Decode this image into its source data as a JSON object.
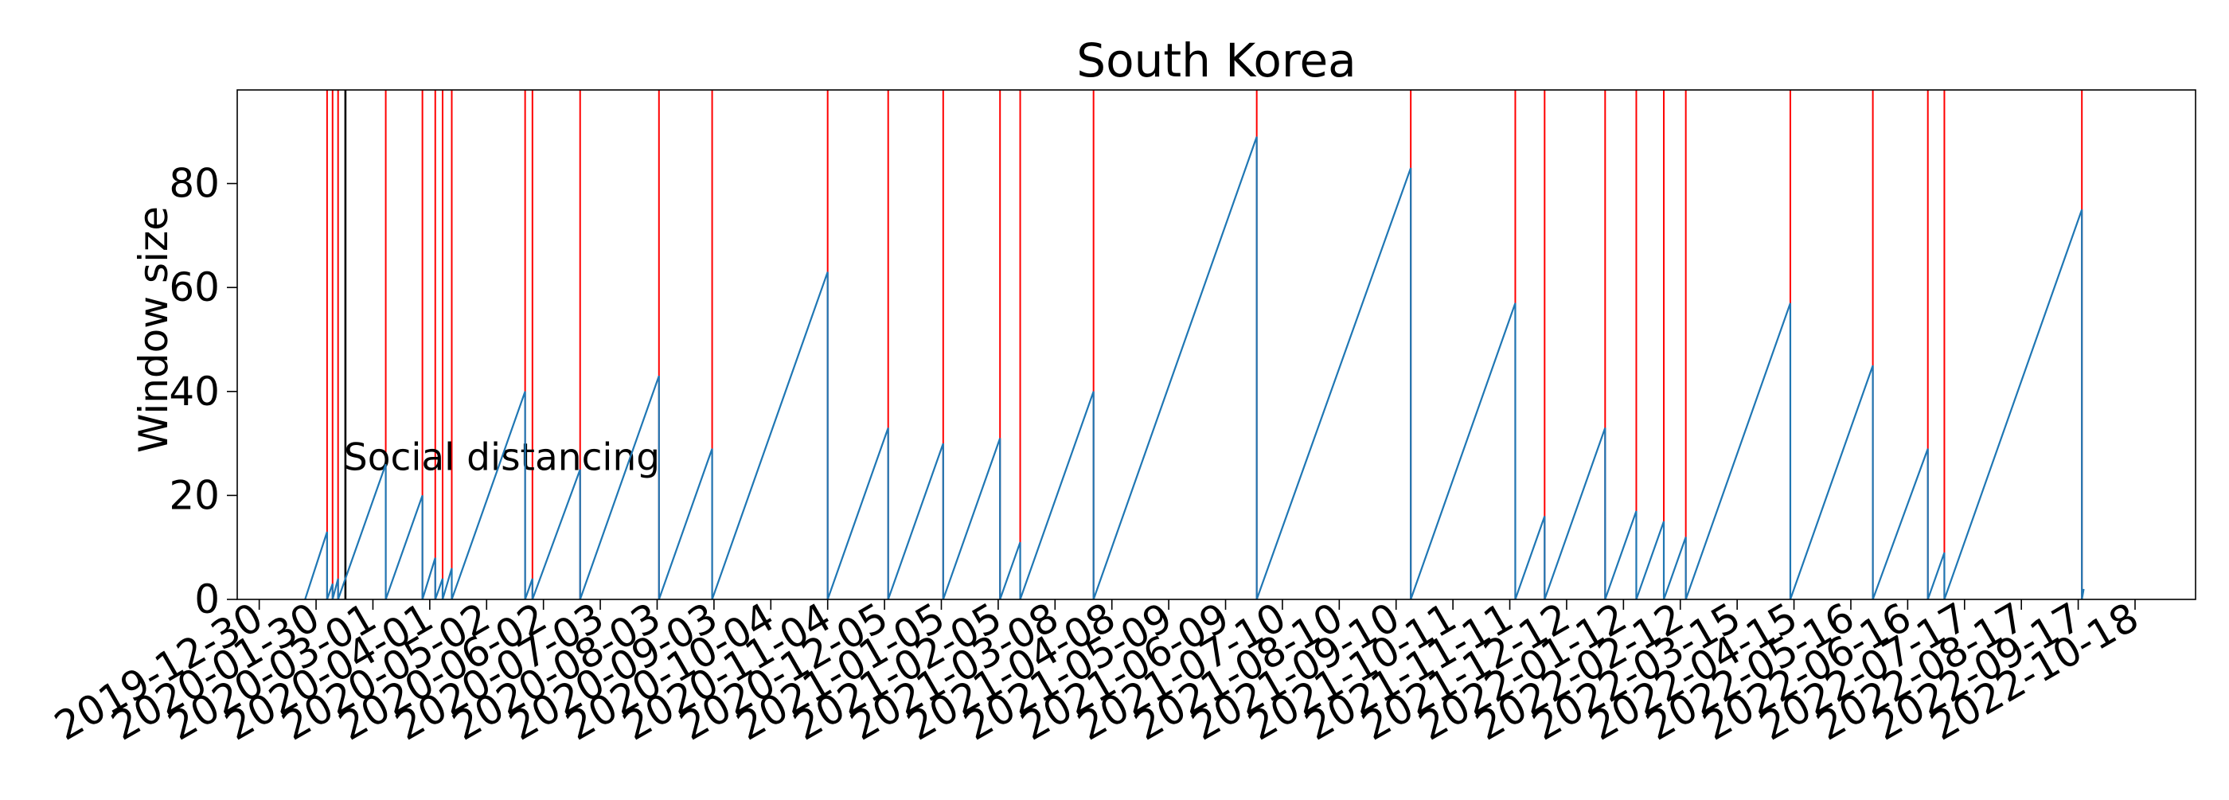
{
  "chart_data": {
    "type": "line",
    "title": "South Korea",
    "ylabel": "Window size",
    "xlabel": "",
    "ylim": [
      0,
      98
    ],
    "yticks": [
      0,
      20,
      40,
      60,
      80
    ],
    "xlim": [
      "2019-12-18",
      "2022-11-20"
    ],
    "xticks": [
      "2019-12-30",
      "2020-01-30",
      "2020-03-01",
      "2020-04-01",
      "2020-05-02",
      "2020-06-02",
      "2020-07-03",
      "2020-08-03",
      "2020-09-03",
      "2020-10-04",
      "2020-11-04",
      "2020-12-05",
      "2021-01-05",
      "2021-02-05",
      "2021-03-08",
      "2021-04-08",
      "2021-05-09",
      "2021-06-09",
      "2021-07-10",
      "2021-08-10",
      "2021-09-10",
      "2021-10-11",
      "2021-11-11",
      "2021-12-12",
      "2022-01-12",
      "2022-02-12",
      "2022-03-15",
      "2022-04-15",
      "2022-05-16",
      "2022-06-16",
      "2022-07-17",
      "2022-08-17",
      "2022-09-17",
      "2022-10-18"
    ],
    "grid": false,
    "colors": {
      "series": "#1f77b4",
      "changepoint": "#ff0000",
      "intervention": "#000000"
    },
    "series": [
      {
        "points": [
          [
            "2020-01-24",
            0
          ],
          [
            "2020-02-05",
            13
          ],
          [
            "2020-02-05",
            0
          ],
          [
            "2020-02-08",
            3
          ],
          [
            "2020-02-08",
            0
          ],
          [
            "2020-02-11",
            4
          ],
          [
            "2020-02-11",
            0
          ],
          [
            "2020-03-08",
            26
          ],
          [
            "2020-03-08",
            0
          ],
          [
            "2020-03-28",
            20
          ],
          [
            "2020-03-28",
            0
          ],
          [
            "2020-04-04",
            8
          ],
          [
            "2020-04-04",
            0
          ],
          [
            "2020-04-08",
            4
          ],
          [
            "2020-04-08",
            0
          ],
          [
            "2020-04-13",
            6
          ],
          [
            "2020-04-13",
            0
          ],
          [
            "2020-05-23",
            40
          ],
          [
            "2020-05-23",
            0
          ],
          [
            "2020-05-27",
            4
          ],
          [
            "2020-05-27",
            0
          ],
          [
            "2020-06-22",
            25
          ],
          [
            "2020-06-22",
            0
          ],
          [
            "2020-08-04",
            43
          ],
          [
            "2020-08-04",
            0
          ],
          [
            "2020-09-02",
            29
          ],
          [
            "2020-09-02",
            0
          ],
          [
            "2020-11-04",
            63
          ],
          [
            "2020-11-04",
            0
          ],
          [
            "2020-12-07",
            33
          ],
          [
            "2020-12-07",
            0
          ],
          [
            "2021-01-06",
            30
          ],
          [
            "2021-01-06",
            0
          ],
          [
            "2021-02-06",
            31
          ],
          [
            "2021-02-06",
            0
          ],
          [
            "2021-02-17",
            11
          ],
          [
            "2021-02-17",
            0
          ],
          [
            "2021-03-29",
            40
          ],
          [
            "2021-03-29",
            0
          ],
          [
            "2021-06-26",
            89
          ],
          [
            "2021-06-26",
            0
          ],
          [
            "2021-09-18",
            83
          ],
          [
            "2021-09-18",
            0
          ],
          [
            "2021-11-14",
            57
          ],
          [
            "2021-11-14",
            0
          ],
          [
            "2021-11-30",
            16
          ],
          [
            "2021-11-30",
            0
          ],
          [
            "2022-01-02",
            33
          ],
          [
            "2022-01-02",
            0
          ],
          [
            "2022-01-19",
            17
          ],
          [
            "2022-01-19",
            0
          ],
          [
            "2022-02-03",
            15
          ],
          [
            "2022-02-03",
            0
          ],
          [
            "2022-02-15",
            12
          ],
          [
            "2022-02-15",
            0
          ],
          [
            "2022-04-13",
            57
          ],
          [
            "2022-04-13",
            0
          ],
          [
            "2022-05-28",
            45
          ],
          [
            "2022-05-28",
            0
          ],
          [
            "2022-06-27",
            29
          ],
          [
            "2022-06-27",
            0
          ],
          [
            "2022-07-06",
            9
          ],
          [
            "2022-07-06",
            0
          ],
          [
            "2022-09-19",
            75
          ],
          [
            "2022-09-19",
            0
          ],
          [
            "2022-09-20",
            2
          ]
        ]
      }
    ],
    "changepoints": [
      "2020-02-05",
      "2020-02-08",
      "2020-02-11",
      "2020-03-08",
      "2020-03-28",
      "2020-04-04",
      "2020-04-08",
      "2020-04-13",
      "2020-05-23",
      "2020-05-27",
      "2020-06-22",
      "2020-08-04",
      "2020-09-02",
      "2020-11-04",
      "2020-12-07",
      "2021-01-06",
      "2021-02-06",
      "2021-02-17",
      "2021-03-29",
      "2021-06-26",
      "2021-09-18",
      "2021-11-14",
      "2021-11-30",
      "2022-01-02",
      "2022-01-19",
      "2022-02-03",
      "2022-02-15",
      "2022-04-13",
      "2022-05-28",
      "2022-06-27",
      "2022-07-06",
      "2022-09-19"
    ],
    "interventions": [
      {
        "date": "2020-02-15",
        "label": "Social distancing",
        "label_y": 27.5
      }
    ]
  }
}
